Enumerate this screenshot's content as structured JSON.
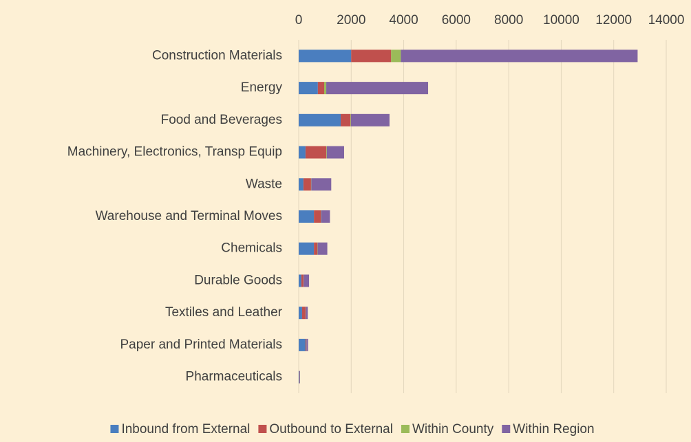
{
  "chart_data": {
    "type": "bar",
    "orientation": "horizontal",
    "stacked": true,
    "categories": [
      "Construction Materials",
      "Energy",
      "Food and Beverages",
      "Machinery, Electronics, Transp Equip",
      "Waste",
      "Warehouse and Terminal Moves",
      "Chemicals",
      "Durable Goods",
      "Textiles and Leather",
      "Paper and Printed Materials",
      "Pharmaceuticals"
    ],
    "series": [
      {
        "name": "Inbound from External",
        "color": "#4a7ebf",
        "values": [
          2000,
          730,
          1600,
          260,
          180,
          580,
          580,
          100,
          130,
          260,
          30
        ]
      },
      {
        "name": "Outbound to External",
        "color": "#c0504d",
        "values": [
          1520,
          240,
          370,
          790,
          290,
          260,
          130,
          80,
          130,
          30,
          10
        ]
      },
      {
        "name": "Within County",
        "color": "#9bbb59",
        "values": [
          370,
          80,
          20,
          20,
          10,
          10,
          10,
          5,
          5,
          5,
          2
        ]
      },
      {
        "name": "Within Region",
        "color": "#8064a2",
        "values": [
          9020,
          3880,
          1470,
          660,
          760,
          340,
          370,
          210,
          80,
          60,
          10
        ]
      }
    ],
    "xlim": [
      0,
      14000
    ],
    "xticks": [
      0,
      2000,
      4000,
      6000,
      8000,
      10000,
      12000,
      14000
    ],
    "grid": true,
    "legend": "bottom"
  }
}
